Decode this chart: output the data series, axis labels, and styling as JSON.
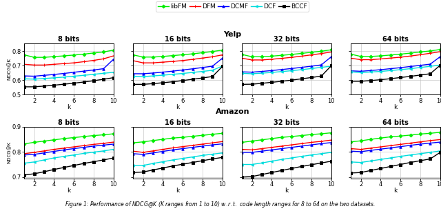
{
  "legend_labels": [
    "libFM",
    "DFM",
    "DCMF",
    "DCF",
    "BCCF"
  ],
  "legend_colors": [
    "#00ee00",
    "#ff0000",
    "#0000ff",
    "#00dddd",
    "#000000"
  ],
  "legend_markers": [
    "D",
    "+",
    "^",
    "<",
    "s"
  ],
  "row_titles": [
    "Yelp",
    "Amazon"
  ],
  "col_titles": [
    "8 bits",
    "16 bits",
    "32 bits",
    "64 bits"
  ],
  "x": [
    1,
    2,
    3,
    4,
    5,
    6,
    7,
    8,
    9,
    10
  ],
  "yelp": {
    "8": {
      "libFM": [
        0.775,
        0.758,
        0.758,
        0.763,
        0.768,
        0.774,
        0.78,
        0.788,
        0.795,
        0.808
      ],
      "DFM": [
        0.71,
        0.705,
        0.705,
        0.71,
        0.715,
        0.72,
        0.728,
        0.737,
        0.748,
        0.768
      ],
      "DCMF": [
        0.63,
        0.628,
        0.634,
        0.64,
        0.647,
        0.655,
        0.663,
        0.671,
        0.68,
        0.745
      ],
      "DCF": [
        0.61,
        0.608,
        0.612,
        0.617,
        0.622,
        0.628,
        0.634,
        0.641,
        0.648,
        0.655
      ],
      "BCCF": [
        0.555,
        0.555,
        0.56,
        0.566,
        0.573,
        0.58,
        0.588,
        0.597,
        0.607,
        0.618
      ]
    },
    "16": {
      "libFM": [
        0.775,
        0.76,
        0.76,
        0.764,
        0.77,
        0.776,
        0.782,
        0.79,
        0.798,
        0.808
      ],
      "DFM": [
        0.735,
        0.72,
        0.72,
        0.725,
        0.73,
        0.736,
        0.744,
        0.753,
        0.762,
        0.775
      ],
      "DCMF": [
        0.645,
        0.645,
        0.65,
        0.656,
        0.663,
        0.671,
        0.679,
        0.688,
        0.697,
        0.752
      ],
      "DCF": [
        0.628,
        0.625,
        0.63,
        0.635,
        0.641,
        0.647,
        0.654,
        0.661,
        0.669,
        0.698
      ],
      "BCCF": [
        0.572,
        0.572,
        0.577,
        0.583,
        0.59,
        0.598,
        0.607,
        0.616,
        0.626,
        0.695
      ]
    },
    "32": {
      "libFM": [
        0.778,
        0.762,
        0.762,
        0.766,
        0.772,
        0.778,
        0.785,
        0.793,
        0.8,
        0.81
      ],
      "DFM": [
        0.752,
        0.74,
        0.74,
        0.745,
        0.751,
        0.758,
        0.766,
        0.775,
        0.784,
        0.795
      ],
      "DCMF": [
        0.658,
        0.656,
        0.661,
        0.667,
        0.674,
        0.681,
        0.689,
        0.697,
        0.706,
        0.762
      ],
      "DCF": [
        0.648,
        0.645,
        0.649,
        0.654,
        0.66,
        0.666,
        0.673,
        0.681,
        0.689,
        0.697
      ],
      "BCCF": [
        0.572,
        0.573,
        0.579,
        0.586,
        0.593,
        0.601,
        0.61,
        0.619,
        0.629,
        0.7
      ]
    },
    "64": {
      "libFM": [
        0.78,
        0.764,
        0.764,
        0.768,
        0.774,
        0.78,
        0.787,
        0.795,
        0.802,
        0.812
      ],
      "DFM": [
        0.752,
        0.742,
        0.742,
        0.747,
        0.753,
        0.759,
        0.767,
        0.776,
        0.786,
        0.797
      ],
      "DCMF": [
        0.665,
        0.662,
        0.667,
        0.673,
        0.68,
        0.687,
        0.695,
        0.703,
        0.711,
        0.762
      ],
      "DCF": [
        0.658,
        0.653,
        0.657,
        0.661,
        0.667,
        0.673,
        0.68,
        0.688,
        0.696,
        0.705
      ],
      "BCCF": [
        0.593,
        0.593,
        0.598,
        0.604,
        0.611,
        0.619,
        0.627,
        0.636,
        0.645,
        0.703
      ]
    }
  },
  "amazon": {
    "8": {
      "libFM": [
        0.832,
        0.838,
        0.843,
        0.848,
        0.853,
        0.857,
        0.861,
        0.865,
        0.868,
        0.872
      ],
      "DFM": [
        0.793,
        0.798,
        0.804,
        0.81,
        0.815,
        0.82,
        0.825,
        0.83,
        0.834,
        0.839
      ],
      "DCMF": [
        0.788,
        0.79,
        0.796,
        0.802,
        0.808,
        0.813,
        0.818,
        0.823,
        0.827,
        0.831
      ],
      "DCF": [
        0.755,
        0.76,
        0.768,
        0.776,
        0.782,
        0.788,
        0.794,
        0.799,
        0.804,
        0.81
      ],
      "BCCF": [
        0.708,
        0.713,
        0.721,
        0.73,
        0.738,
        0.746,
        0.754,
        0.761,
        0.768,
        0.776
      ]
    },
    "16": {
      "libFM": [
        0.836,
        0.84,
        0.845,
        0.85,
        0.855,
        0.858,
        0.862,
        0.866,
        0.87,
        0.874
      ],
      "DFM": [
        0.803,
        0.798,
        0.804,
        0.81,
        0.816,
        0.821,
        0.826,
        0.831,
        0.836,
        0.841
      ],
      "DCMF": [
        0.793,
        0.79,
        0.796,
        0.802,
        0.808,
        0.813,
        0.818,
        0.823,
        0.828,
        0.832
      ],
      "DCF": [
        0.746,
        0.746,
        0.754,
        0.761,
        0.768,
        0.774,
        0.78,
        0.786,
        0.791,
        0.796
      ],
      "BCCF": [
        0.718,
        0.72,
        0.728,
        0.736,
        0.744,
        0.751,
        0.758,
        0.765,
        0.772,
        0.778
      ]
    },
    "32": {
      "libFM": [
        0.838,
        0.843,
        0.848,
        0.853,
        0.858,
        0.861,
        0.865,
        0.869,
        0.872,
        0.876
      ],
      "DFM": [
        0.81,
        0.808,
        0.813,
        0.818,
        0.823,
        0.828,
        0.833,
        0.838,
        0.842,
        0.847
      ],
      "DCMF": [
        0.798,
        0.798,
        0.803,
        0.808,
        0.813,
        0.818,
        0.823,
        0.828,
        0.833,
        0.837
      ],
      "DCF": [
        0.75,
        0.75,
        0.756,
        0.763,
        0.77,
        0.776,
        0.782,
        0.788,
        0.793,
        0.798
      ],
      "BCCF": [
        0.7,
        0.702,
        0.71,
        0.718,
        0.726,
        0.734,
        0.742,
        0.749,
        0.756,
        0.763
      ]
    },
    "64": {
      "libFM": [
        0.84,
        0.844,
        0.85,
        0.855,
        0.86,
        0.863,
        0.867,
        0.871,
        0.874,
        0.878
      ],
      "DFM": [
        0.813,
        0.81,
        0.815,
        0.82,
        0.825,
        0.83,
        0.835,
        0.84,
        0.845,
        0.849
      ],
      "DCMF": [
        0.803,
        0.801,
        0.806,
        0.811,
        0.816,
        0.821,
        0.826,
        0.831,
        0.835,
        0.839
      ],
      "DCF": [
        0.76,
        0.758,
        0.764,
        0.77,
        0.776,
        0.782,
        0.788,
        0.793,
        0.798,
        0.804
      ],
      "BCCF": [
        0.716,
        0.718,
        0.726,
        0.734,
        0.742,
        0.75,
        0.758,
        0.765,
        0.772,
        0.798
      ]
    }
  },
  "yelp_ylim": [
    0.5,
    0.855
  ],
  "yelp_yticks": [
    0.5,
    0.6,
    0.7,
    0.8
  ],
  "amazon_ylim": [
    0.695,
    0.9
  ],
  "amazon_yticks": [
    0.7,
    0.8,
    0.9
  ],
  "xlim": [
    1,
    10
  ],
  "xticks": [
    2,
    4,
    6,
    8,
    10
  ],
  "linewidth": 1.0,
  "markersize": 2.5,
  "fontsize_col_title": 7,
  "fontsize_row_title": 8,
  "fontsize_axis_label": 6.5,
  "fontsize_tick": 6,
  "fontsize_legend": 6.5,
  "fontsize_ylabel": 5,
  "fontsize_caption": 5.5
}
